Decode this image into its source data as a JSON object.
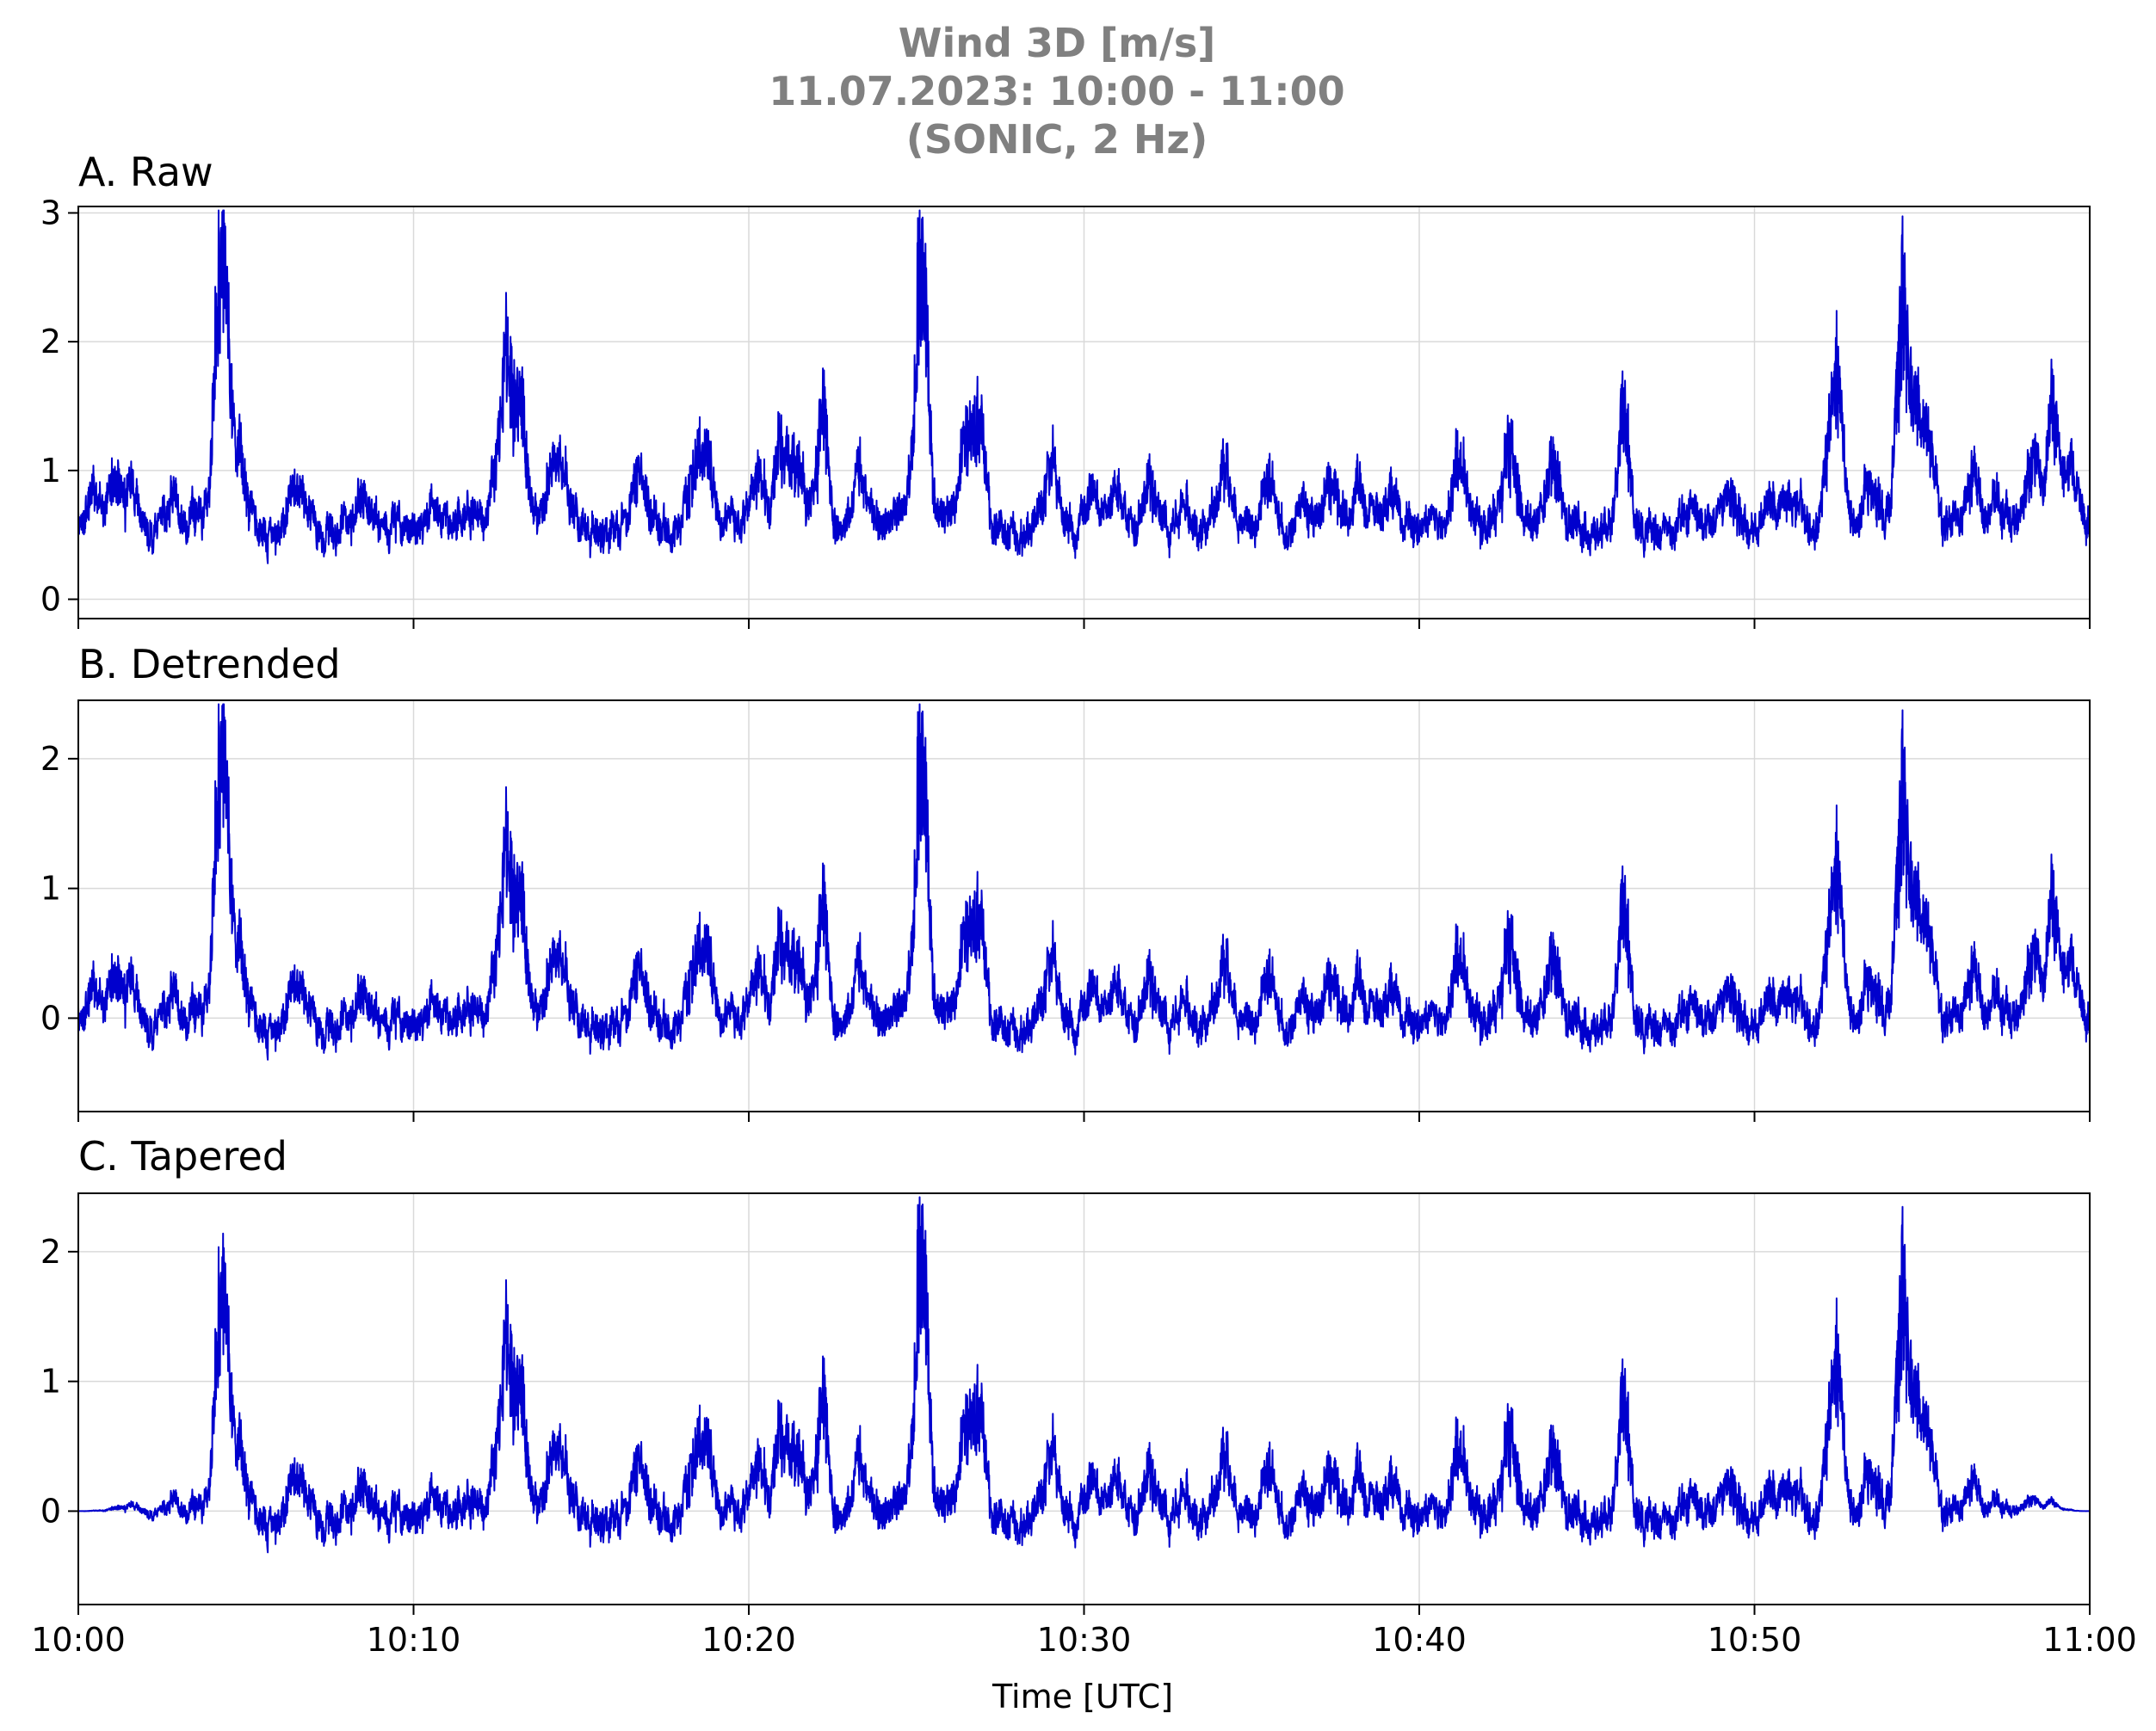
{
  "figure": {
    "title_lines": [
      "Wind 3D [m/s]",
      "11.07.2023:  10:00 -  11:00",
      "(SONIC, 2 Hz)"
    ],
    "xlabel": "Time [UTC]",
    "x_tick_labels": [
      "10:00",
      "10:10",
      "10:20",
      "10:30",
      "10:40",
      "10:50",
      "11:00"
    ]
  },
  "colors": {
    "line": "#0000cd",
    "title": "#808080",
    "grid": "#d9d9d9"
  },
  "chart_data": [
    {
      "type": "line",
      "title": "A. Raw",
      "x_range_minutes": [
        0,
        60
      ],
      "ylim": [
        -0.15,
        3.05
      ],
      "yticks": [
        0,
        1,
        2,
        3
      ],
      "grid": true,
      "baseline": 0.55,
      "noise": 0.22,
      "tapered": false,
      "series": [
        {
          "name": "",
          "peaks": [
            [
              0.5,
              0.35
            ],
            [
              1.1,
              0.45
            ],
            [
              1.6,
              0.45
            ],
            [
              2.7,
              0.3
            ],
            [
              3.5,
              0.2
            ],
            [
              4.2,
              1.95
            ],
            [
              4.4,
              1.6
            ],
            [
              4.8,
              0.7
            ],
            [
              6.5,
              0.45
            ],
            [
              8.5,
              0.3
            ],
            [
              10.6,
              0.2
            ],
            [
              11.6,
              0.2
            ],
            [
              12.5,
              0.6
            ],
            [
              12.8,
              1.6
            ],
            [
              13.2,
              1.3
            ],
            [
              14.2,
              0.65
            ],
            [
              14.5,
              0.4
            ],
            [
              16.7,
              0.65
            ],
            [
              18.4,
              0.7
            ],
            [
              18.8,
              0.6
            ],
            [
              20.3,
              0.55
            ],
            [
              21.0,
              0.9
            ],
            [
              21.5,
              0.6
            ],
            [
              22.2,
              1.3
            ],
            [
              23.3,
              0.6
            ],
            [
              24.5,
              0.2
            ],
            [
              25.1,
              2.3
            ],
            [
              25.3,
              1.0
            ],
            [
              26.5,
              0.9
            ],
            [
              26.9,
              1.0
            ],
            [
              29.0,
              0.7
            ],
            [
              30.3,
              0.4
            ],
            [
              31.0,
              0.35
            ],
            [
              32.0,
              0.5
            ],
            [
              33.0,
              0.3
            ],
            [
              34.2,
              0.6
            ],
            [
              35.5,
              0.5
            ],
            [
              36.5,
              0.3
            ],
            [
              37.4,
              0.5
            ],
            [
              38.2,
              0.4
            ],
            [
              39.2,
              0.4
            ],
            [
              41.2,
              0.7
            ],
            [
              42.7,
              0.9
            ],
            [
              44.0,
              0.7
            ],
            [
              46.1,
              1.4
            ],
            [
              48.0,
              0.3
            ],
            [
              49.2,
              0.45
            ],
            [
              50.5,
              0.3
            ],
            [
              51.1,
              0.35
            ],
            [
              52.3,
              0.8
            ],
            [
              52.5,
              1.1
            ],
            [
              53.5,
              0.5
            ],
            [
              54.4,
              2.3
            ],
            [
              54.8,
              1.2
            ],
            [
              55.2,
              0.9
            ],
            [
              56.5,
              0.45
            ],
            [
              57.2,
              0.3
            ],
            [
              58.3,
              0.7
            ],
            [
              58.9,
              1.2
            ],
            [
              59.4,
              0.6
            ]
          ]
        }
      ]
    },
    {
      "type": "line",
      "title": "B. Detrended",
      "x_range_minutes": [
        0,
        60
      ],
      "ylim": [
        -0.72,
        2.45
      ],
      "yticks": [
        0,
        1,
        2
      ],
      "grid": true,
      "baseline": -0.05,
      "noise": 0.22,
      "tapered": false,
      "series": [
        {
          "name": "",
          "peaks": [
            [
              0.5,
              0.35
            ],
            [
              1.1,
              0.45
            ],
            [
              1.6,
              0.45
            ],
            [
              2.7,
              0.3
            ],
            [
              3.5,
              0.2
            ],
            [
              4.2,
              1.95
            ],
            [
              4.4,
              1.6
            ],
            [
              4.8,
              0.7
            ],
            [
              6.5,
              0.45
            ],
            [
              8.5,
              0.3
            ],
            [
              10.6,
              0.2
            ],
            [
              11.6,
              0.2
            ],
            [
              12.5,
              0.6
            ],
            [
              12.8,
              1.6
            ],
            [
              13.2,
              1.3
            ],
            [
              14.2,
              0.65
            ],
            [
              14.5,
              0.4
            ],
            [
              16.7,
              0.65
            ],
            [
              18.4,
              0.7
            ],
            [
              18.8,
              0.6
            ],
            [
              20.3,
              0.55
            ],
            [
              21.0,
              0.9
            ],
            [
              21.5,
              0.6
            ],
            [
              22.2,
              1.3
            ],
            [
              23.3,
              0.6
            ],
            [
              24.5,
              0.2
            ],
            [
              25.1,
              2.3
            ],
            [
              25.3,
              1.0
            ],
            [
              26.5,
              0.9
            ],
            [
              26.9,
              1.0
            ],
            [
              29.0,
              0.7
            ],
            [
              30.3,
              0.4
            ],
            [
              31.0,
              0.35
            ],
            [
              32.0,
              0.5
            ],
            [
              33.0,
              0.3
            ],
            [
              34.2,
              0.6
            ],
            [
              35.5,
              0.5
            ],
            [
              36.5,
              0.3
            ],
            [
              37.4,
              0.5
            ],
            [
              38.2,
              0.4
            ],
            [
              39.2,
              0.4
            ],
            [
              41.2,
              0.7
            ],
            [
              42.7,
              0.9
            ],
            [
              44.0,
              0.7
            ],
            [
              46.1,
              1.4
            ],
            [
              48.0,
              0.3
            ],
            [
              49.2,
              0.45
            ],
            [
              50.5,
              0.3
            ],
            [
              51.1,
              0.35
            ],
            [
              52.3,
              0.8
            ],
            [
              52.5,
              1.1
            ],
            [
              53.5,
              0.5
            ],
            [
              54.4,
              2.3
            ],
            [
              54.8,
              1.2
            ],
            [
              55.2,
              0.9
            ],
            [
              56.5,
              0.45
            ],
            [
              57.2,
              0.3
            ],
            [
              58.3,
              0.7
            ],
            [
              58.9,
              1.2
            ],
            [
              59.4,
              0.6
            ]
          ]
        }
      ]
    },
    {
      "type": "line",
      "title": "C. Tapered",
      "x_range_minutes": [
        0,
        60
      ],
      "ylim": [
        -0.72,
        2.45
      ],
      "yticks": [
        0,
        1,
        2
      ],
      "grid": true,
      "baseline": -0.05,
      "noise": 0.22,
      "tapered": true,
      "series": [
        {
          "name": "",
          "peaks": [
            [
              0.5,
              0.35
            ],
            [
              1.1,
              0.45
            ],
            [
              1.6,
              0.45
            ],
            [
              2.7,
              0.3
            ],
            [
              3.5,
              0.2
            ],
            [
              4.2,
              1.95
            ],
            [
              4.4,
              1.6
            ],
            [
              4.8,
              0.7
            ],
            [
              6.5,
              0.45
            ],
            [
              8.5,
              0.3
            ],
            [
              10.6,
              0.2
            ],
            [
              11.6,
              0.2
            ],
            [
              12.5,
              0.6
            ],
            [
              12.8,
              1.6
            ],
            [
              13.2,
              1.3
            ],
            [
              14.2,
              0.65
            ],
            [
              14.5,
              0.4
            ],
            [
              16.7,
              0.65
            ],
            [
              18.4,
              0.7
            ],
            [
              18.8,
              0.6
            ],
            [
              20.3,
              0.55
            ],
            [
              21.0,
              0.9
            ],
            [
              21.5,
              0.6
            ],
            [
              22.2,
              1.3
            ],
            [
              23.3,
              0.6
            ],
            [
              24.5,
              0.2
            ],
            [
              25.1,
              2.3
            ],
            [
              25.3,
              1.0
            ],
            [
              26.5,
              0.9
            ],
            [
              26.9,
              1.0
            ],
            [
              29.0,
              0.7
            ],
            [
              30.3,
              0.4
            ],
            [
              31.0,
              0.35
            ],
            [
              32.0,
              0.5
            ],
            [
              33.0,
              0.3
            ],
            [
              34.2,
              0.6
            ],
            [
              35.5,
              0.5
            ],
            [
              36.5,
              0.3
            ],
            [
              37.4,
              0.5
            ],
            [
              38.2,
              0.4
            ],
            [
              39.2,
              0.4
            ],
            [
              41.2,
              0.7
            ],
            [
              42.7,
              0.9
            ],
            [
              44.0,
              0.7
            ],
            [
              46.1,
              1.4
            ],
            [
              48.0,
              0.3
            ],
            [
              49.2,
              0.45
            ],
            [
              50.5,
              0.3
            ],
            [
              51.1,
              0.35
            ],
            [
              52.3,
              0.8
            ],
            [
              52.5,
              1.1
            ],
            [
              53.5,
              0.5
            ],
            [
              54.4,
              2.3
            ],
            [
              54.8,
              1.2
            ],
            [
              55.2,
              0.9
            ],
            [
              56.5,
              0.45
            ],
            [
              57.2,
              0.3
            ],
            [
              58.3,
              0.7
            ],
            [
              58.9,
              1.2
            ],
            [
              59.4,
              0.6
            ]
          ]
        }
      ]
    }
  ]
}
